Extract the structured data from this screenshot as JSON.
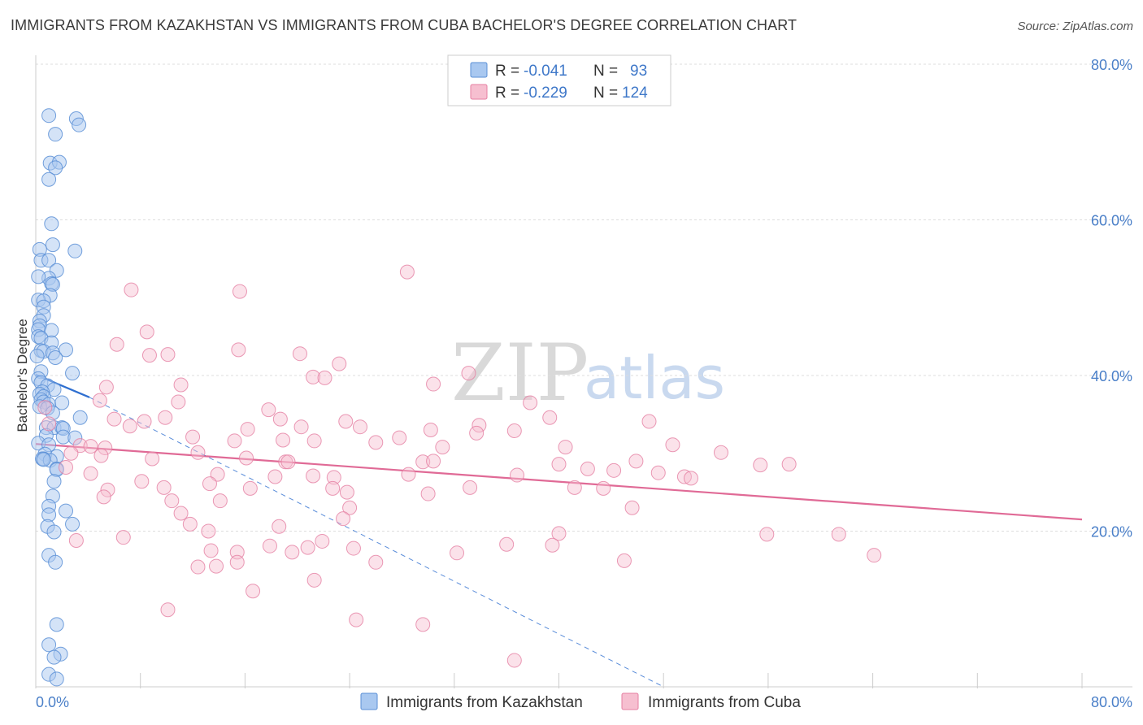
{
  "title": "IMMIGRANTS FROM KAZAKHSTAN VS IMMIGRANTS FROM CUBA BACHELOR'S DEGREE CORRELATION CHART",
  "source": "Source: ZipAtlas.com",
  "watermark": {
    "zip": "ZIP",
    "atlas": "atlas"
  },
  "colors": {
    "kazakhstan_fill": "#a9c8f0",
    "kazakhstan_stroke": "#5b8fd6",
    "kazakhstan_line": "#2f6fd0",
    "cuba_fill": "#f6bfd0",
    "cuba_stroke": "#e57fa2",
    "cuba_line": "#e06a96",
    "grid": "#dddddd",
    "axis_text": "#4a7fc8"
  },
  "legend": {
    "rows": [
      {
        "r_label": "R = ",
        "r_value": "-0.041",
        "n_label": "N = ",
        "n_value": "93"
      },
      {
        "r_label": "R = ",
        "r_value": "-0.229",
        "n_label": "N = ",
        "n_value": "124"
      }
    ]
  },
  "chart_data": {
    "type": "scatter",
    "title": "IMMIGRANTS FROM KAZAKHSTAN VS IMMIGRANTS FROM CUBA BACHELOR'S DEGREE CORRELATION CHART",
    "xlabel": "",
    "ylabel": "Bachelor's Degree",
    "xlim": [
      0,
      80
    ],
    "ylim": [
      0,
      80
    ],
    "x_tick_labels": [
      "0.0%",
      "80.0%"
    ],
    "y_tick_labels": [
      "20.0%",
      "40.0%",
      "60.0%",
      "80.0%"
    ],
    "y_ticks": [
      20,
      40,
      60,
      80
    ],
    "grid": true,
    "legend_position": "top-center",
    "series": [
      {
        "name": "Immigrants from Kazakhstan",
        "R": -0.041,
        "N": 93,
        "trend_solid": [
          [
            0,
            40.1
          ],
          [
            4.1,
            37.2
          ]
        ],
        "trend_dashed": [
          [
            4.1,
            37.2
          ],
          [
            48.0,
            0.0
          ]
        ],
        "points": [
          [
            1.0,
            73.4
          ],
          [
            3.1,
            73.0
          ],
          [
            3.3,
            72.2
          ],
          [
            1.5,
            71.0
          ],
          [
            1.1,
            67.3
          ],
          [
            1.8,
            67.4
          ],
          [
            1.5,
            66.7
          ],
          [
            1.0,
            65.2
          ],
          [
            1.2,
            59.5
          ],
          [
            0.3,
            56.2
          ],
          [
            1.3,
            56.8
          ],
          [
            3.0,
            56.0
          ],
          [
            0.4,
            54.8
          ],
          [
            1.0,
            54.8
          ],
          [
            1.6,
            53.5
          ],
          [
            1.0,
            52.5
          ],
          [
            1.2,
            51.8
          ],
          [
            1.3,
            51.7
          ],
          [
            0.2,
            52.7
          ],
          [
            1.1,
            50.3
          ],
          [
            0.2,
            49.7
          ],
          [
            0.6,
            49.6
          ],
          [
            0.6,
            48.8
          ],
          [
            0.6,
            47.7
          ],
          [
            0.3,
            47.0
          ],
          [
            0.3,
            46.4
          ],
          [
            0.2,
            45.9
          ],
          [
            1.2,
            45.8
          ],
          [
            0.2,
            45.0
          ],
          [
            0.4,
            44.8
          ],
          [
            1.2,
            44.2
          ],
          [
            0.4,
            43.2
          ],
          [
            2.3,
            43.3
          ],
          [
            0.6,
            43.1
          ],
          [
            1.3,
            42.9
          ],
          [
            1.5,
            42.3
          ],
          [
            0.1,
            42.5
          ],
          [
            2.8,
            40.3
          ],
          [
            0.4,
            40.5
          ],
          [
            0.2,
            39.6
          ],
          [
            0.4,
            39.1
          ],
          [
            0.9,
            38.7
          ],
          [
            1.4,
            38.2
          ],
          [
            0.5,
            37.9
          ],
          [
            0.3,
            37.6
          ],
          [
            0.6,
            37.3
          ],
          [
            0.4,
            36.9
          ],
          [
            0.6,
            36.6
          ],
          [
            1.0,
            36.3
          ],
          [
            2.0,
            36.5
          ],
          [
            0.3,
            36.0
          ],
          [
            0.9,
            35.8
          ],
          [
            1.3,
            35.2
          ],
          [
            3.4,
            34.6
          ],
          [
            0.8,
            33.3
          ],
          [
            1.4,
            33.3
          ],
          [
            2.0,
            33.3
          ],
          [
            2.1,
            33.2
          ],
          [
            0.8,
            32.3
          ],
          [
            2.1,
            32.1
          ],
          [
            3.0,
            32.0
          ],
          [
            0.2,
            31.3
          ],
          [
            1.0,
            31.1
          ],
          [
            0.7,
            29.9
          ],
          [
            1.6,
            29.6
          ],
          [
            0.6,
            29.3
          ],
          [
            0.5,
            29.3
          ],
          [
            1.1,
            29.1
          ],
          [
            0.6,
            29.2
          ],
          [
            1.6,
            28.0
          ],
          [
            1.6,
            27.9
          ],
          [
            1.4,
            26.4
          ],
          [
            1.3,
            24.5
          ],
          [
            1.0,
            23.2
          ],
          [
            2.3,
            22.6
          ],
          [
            1.0,
            22.1
          ],
          [
            2.8,
            20.9
          ],
          [
            0.9,
            20.6
          ],
          [
            1.4,
            19.9
          ],
          [
            1.0,
            16.9
          ],
          [
            1.5,
            16.0
          ],
          [
            1.6,
            8.0
          ],
          [
            1.0,
            5.4
          ],
          [
            1.9,
            4.2
          ],
          [
            1.4,
            3.8
          ],
          [
            1.0,
            1.6
          ],
          [
            1.6,
            1.0
          ]
        ]
      },
      {
        "name": "Immigrants from Cuba",
        "R": -0.229,
        "N": 124,
        "trend_solid": [
          [
            0,
            31.2
          ],
          [
            80.0,
            21.5
          ]
        ],
        "points": [
          [
            28.4,
            53.3
          ],
          [
            7.3,
            51.0
          ],
          [
            15.6,
            50.8
          ],
          [
            8.5,
            45.6
          ],
          [
            6.2,
            44.0
          ],
          [
            8.7,
            42.6
          ],
          [
            10.1,
            42.7
          ],
          [
            15.5,
            43.3
          ],
          [
            20.2,
            42.8
          ],
          [
            23.2,
            41.5
          ],
          [
            21.2,
            39.8
          ],
          [
            22.1,
            39.7
          ],
          [
            33.1,
            40.3
          ],
          [
            11.1,
            38.8
          ],
          [
            5.4,
            38.5
          ],
          [
            30.4,
            38.9
          ],
          [
            4.9,
            36.8
          ],
          [
            10.9,
            36.6
          ],
          [
            37.8,
            36.5
          ],
          [
            0.7,
            35.9
          ],
          [
            17.8,
            35.6
          ],
          [
            6.0,
            34.4
          ],
          [
            9.9,
            34.6
          ],
          [
            18.7,
            34.4
          ],
          [
            23.7,
            34.1
          ],
          [
            39.3,
            34.6
          ],
          [
            46.9,
            34.1
          ],
          [
            7.2,
            33.5
          ],
          [
            8.3,
            34.1
          ],
          [
            16.2,
            33.1
          ],
          [
            20.3,
            33.4
          ],
          [
            24.8,
            33.4
          ],
          [
            33.9,
            33.6
          ],
          [
            36.6,
            32.9
          ],
          [
            1.0,
            33.8
          ],
          [
            30.2,
            33.0
          ],
          [
            33.7,
            32.6
          ],
          [
            12.0,
            32.1
          ],
          [
            15.2,
            31.6
          ],
          [
            18.9,
            31.7
          ],
          [
            21.3,
            31.6
          ],
          [
            26.0,
            31.4
          ],
          [
            27.8,
            32.0
          ],
          [
            48.7,
            31.1
          ],
          [
            3.4,
            31.0
          ],
          [
            4.2,
            30.9
          ],
          [
            5.3,
            30.7
          ],
          [
            12.4,
            30.1
          ],
          [
            31.1,
            30.8
          ],
          [
            40.5,
            30.8
          ],
          [
            52.4,
            30.1
          ],
          [
            2.7,
            30.0
          ],
          [
            5.0,
            29.7
          ],
          [
            8.9,
            29.3
          ],
          [
            16.1,
            29.4
          ],
          [
            19.1,
            28.9
          ],
          [
            19.3,
            28.9
          ],
          [
            29.6,
            28.9
          ],
          [
            30.4,
            29.0
          ],
          [
            40.0,
            28.6
          ],
          [
            45.9,
            29.0
          ],
          [
            55.4,
            28.5
          ],
          [
            57.6,
            28.6
          ],
          [
            2.3,
            28.2
          ],
          [
            4.2,
            27.4
          ],
          [
            13.9,
            27.3
          ],
          [
            18.3,
            27.0
          ],
          [
            21.2,
            27.1
          ],
          [
            22.8,
            26.9
          ],
          [
            28.5,
            27.3
          ],
          [
            36.8,
            27.2
          ],
          [
            42.2,
            28.0
          ],
          [
            44.2,
            27.8
          ],
          [
            47.6,
            27.5
          ],
          [
            49.6,
            27.0
          ],
          [
            50.1,
            26.8
          ],
          [
            8.1,
            26.4
          ],
          [
            13.3,
            26.1
          ],
          [
            22.7,
            25.5
          ],
          [
            33.2,
            25.6
          ],
          [
            41.2,
            25.6
          ],
          [
            43.4,
            25.5
          ],
          [
            5.5,
            25.3
          ],
          [
            9.8,
            25.6
          ],
          [
            16.4,
            25.5
          ],
          [
            23.8,
            25.0
          ],
          [
            30.0,
            24.8
          ],
          [
            10.4,
            23.9
          ],
          [
            14.1,
            23.9
          ],
          [
            5.2,
            24.4
          ],
          [
            11.1,
            22.3
          ],
          [
            24.0,
            23.0
          ],
          [
            45.6,
            23.0
          ],
          [
            23.5,
            21.6
          ],
          [
            11.8,
            20.9
          ],
          [
            13.2,
            20.0
          ],
          [
            18.6,
            20.6
          ],
          [
            40.0,
            19.7
          ],
          [
            55.9,
            19.6
          ],
          [
            61.4,
            19.6
          ],
          [
            6.7,
            19.2
          ],
          [
            3.1,
            18.8
          ],
          [
            21.9,
            18.7
          ],
          [
            17.9,
            18.1
          ],
          [
            13.4,
            17.5
          ],
          [
            15.4,
            17.3
          ],
          [
            19.6,
            17.3
          ],
          [
            20.8,
            17.9
          ],
          [
            24.3,
            17.8
          ],
          [
            36.0,
            18.3
          ],
          [
            39.5,
            18.2
          ],
          [
            32.2,
            17.2
          ],
          [
            64.1,
            16.9
          ],
          [
            45.0,
            16.2
          ],
          [
            15.4,
            16.0
          ],
          [
            26.0,
            16.0
          ],
          [
            12.4,
            15.4
          ],
          [
            13.8,
            15.5
          ],
          [
            21.3,
            13.7
          ],
          [
            16.6,
            12.3
          ],
          [
            10.1,
            9.9
          ],
          [
            29.6,
            8.0
          ],
          [
            24.5,
            8.6
          ],
          [
            36.6,
            3.4
          ]
        ]
      }
    ]
  },
  "bottom_legend": [
    {
      "label": "Immigrants from Kazakhstan"
    },
    {
      "label": "Immigrants from Cuba"
    }
  ]
}
